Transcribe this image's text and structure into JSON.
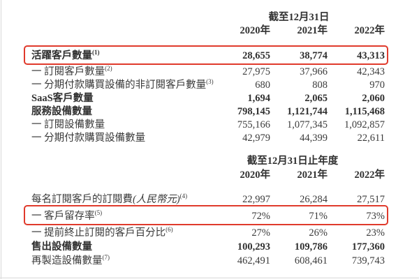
{
  "colors": {
    "highlight_box": "#e03a2c",
    "text": "#3a3a3a"
  },
  "table1": {
    "period_header": "截至12月31日",
    "years": [
      "2020年",
      "2021年",
      "2022年"
    ],
    "rows": [
      {
        "label": "活躍客戶數量",
        "sup": "(1)",
        "bold": true,
        "boxed": true,
        "values": [
          "28,655",
          "38,774",
          "43,313"
        ]
      },
      {
        "label": "一 訂閱客戶數量",
        "sup": "(2)",
        "values": [
          "27,975",
          "37,966",
          "42,343"
        ]
      },
      {
        "label": "一 分期付款購買設備的非訂閱客戶數量",
        "sup": "(3)",
        "values": [
          "680",
          "808",
          "970"
        ]
      },
      {
        "label": "SaaS客戶數量",
        "bold": true,
        "values": [
          "1,694",
          "2,065",
          "2,060"
        ]
      },
      {
        "label": "服務設備數量",
        "bold": true,
        "values": [
          "798,145",
          "1,121,744",
          "1,115,468"
        ]
      },
      {
        "label": "一 訂閱設備數量",
        "values": [
          "755,166",
          "1,077,345",
          "1,092,857"
        ]
      },
      {
        "label": "一 分期付款購買設備數量",
        "values": [
          "42,979",
          "44,399",
          "22,611"
        ]
      }
    ]
  },
  "table2": {
    "period_header": "截至12月31日止年度",
    "years": [
      "2020年",
      "2021年",
      "2022年"
    ],
    "rows": [
      {
        "label": "每名訂閱客戶的訂閱費",
        "label_italic": "(人民幣元)",
        "sup": "(4)",
        "values": [
          "22,997",
          "26,284",
          "27,517"
        ]
      },
      {
        "label": "一 客戶留存率",
        "sup": "(5)",
        "boxed": true,
        "values": [
          "72%",
          "71%",
          "73%"
        ]
      },
      {
        "label": "一 提前終止訂閱的客戶百分比",
        "sup": "(6)",
        "values": [
          "27%",
          "26%",
          "23%"
        ]
      },
      {
        "label": "售出設備數量",
        "bold": true,
        "values": [
          "100,293",
          "109,786",
          "177,360"
        ]
      },
      {
        "label": "再製造設備數量",
        "sup": "(7)",
        "values": [
          "462,491",
          "608,461",
          "739,743"
        ]
      }
    ]
  }
}
